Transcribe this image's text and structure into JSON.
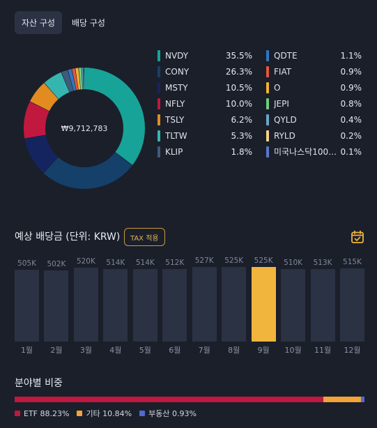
{
  "tabs": [
    {
      "label": "자산 구성",
      "active": true
    },
    {
      "label": "배당 구성",
      "active": false
    }
  ],
  "portfolio": {
    "total": "₩9,712,783",
    "holdings": [
      {
        "name": "NVDY",
        "pct": "35.5%",
        "value": 35.5,
        "color": "#17a398"
      },
      {
        "name": "CONY",
        "pct": "26.3%",
        "value": 26.3,
        "color": "#14406a"
      },
      {
        "name": "MSTY",
        "pct": "10.5%",
        "value": 10.5,
        "color": "#13245e"
      },
      {
        "name": "NFLY",
        "pct": "10.0%",
        "value": 10.0,
        "color": "#c0183f"
      },
      {
        "name": "TSLY",
        "pct": "6.2%",
        "value": 6.2,
        "color": "#e28c1f"
      },
      {
        "name": "TLTW",
        "pct": "5.3%",
        "value": 5.3,
        "color": "#35b5b0"
      },
      {
        "name": "KLIP",
        "pct": "1.8%",
        "value": 1.8,
        "color": "#3e5b7c"
      },
      {
        "name": "QDTE",
        "pct": "1.1%",
        "value": 1.1,
        "color": "#2f77c2"
      },
      {
        "name": "FIAT",
        "pct": "0.9%",
        "value": 0.9,
        "color": "#e4573d"
      },
      {
        "name": "O",
        "pct": "0.9%",
        "value": 0.9,
        "color": "#f2b233"
      },
      {
        "name": "JEPI",
        "pct": "0.8%",
        "value": 0.8,
        "color": "#6fcf7a"
      },
      {
        "name": "QYLD",
        "pct": "0.4%",
        "value": 0.4,
        "color": "#6aa7c9"
      },
      {
        "name": "RYLD",
        "pct": "0.2%",
        "value": 0.2,
        "color": "#f4d28a"
      },
      {
        "name": "미국나스닥100…",
        "pct": "0.1%",
        "value": 0.1,
        "color": "#5a78c8"
      }
    ]
  },
  "dividend": {
    "title": "예상 배당금 (단위: KRW)",
    "tax_label": "TAX 적용",
    "highlight_index": 8,
    "chart_data": {
      "type": "bar",
      "categories": [
        "1월",
        "2월",
        "3월",
        "4월",
        "5월",
        "6월",
        "7월",
        "8월",
        "9월",
        "10월",
        "11월",
        "12월"
      ],
      "value_labels": [
        "505K",
        "502K",
        "520K",
        "514K",
        "514K",
        "512K",
        "527K",
        "525K",
        "525K",
        "510K",
        "513K",
        "515K"
      ],
      "values": [
        505,
        502,
        520,
        514,
        514,
        512,
        527,
        525,
        525,
        510,
        513,
        515
      ],
      "title": "",
      "xlabel": "",
      "ylabel": "",
      "grid": false
    }
  },
  "sector": {
    "title": "분야별 비중",
    "items": [
      {
        "label": "ETF 88.23%",
        "value": 88.23,
        "color": "#c0183f"
      },
      {
        "label": "기타 10.84%",
        "value": 10.84,
        "color": "#f2a33a"
      },
      {
        "label": "부동산 0.93%",
        "value": 0.93,
        "color": "#4e6bd1"
      }
    ]
  }
}
